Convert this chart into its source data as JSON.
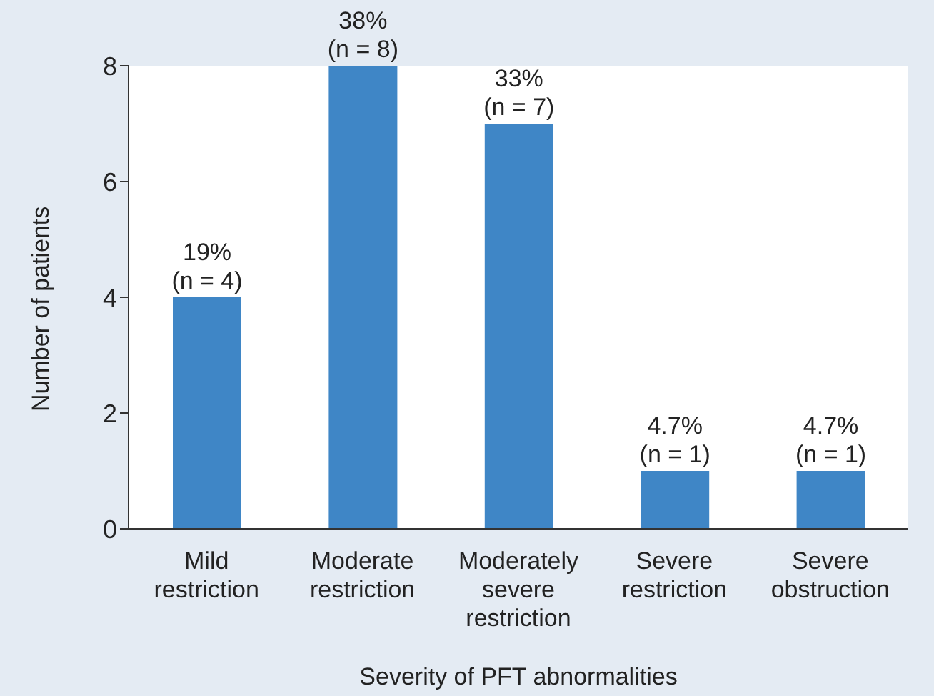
{
  "chart_data": {
    "type": "bar",
    "xlabel": "Severity of PFT abnormalities",
    "ylabel": "Number of patients",
    "categories": [
      "Mild\nrestriction",
      "Moderate\nrestriction",
      "Moderately\nsevere\nrestriction",
      "Severe\nrestriction",
      "Severe\nobstruction"
    ],
    "values": [
      4,
      8,
      7,
      1,
      1
    ],
    "color": "#3f86c6",
    "value_labels": [
      "19%\n(n = 4)",
      "38%\n(n = 8)",
      "33%\n(n = 7)",
      "4.7%\n(n = 1)",
      "4.7%\n(n = 1)"
    ],
    "ylim": [
      0,
      8
    ],
    "yticks": [
      0,
      2,
      4,
      6,
      8
    ],
    "grid": false,
    "legend": false
  }
}
